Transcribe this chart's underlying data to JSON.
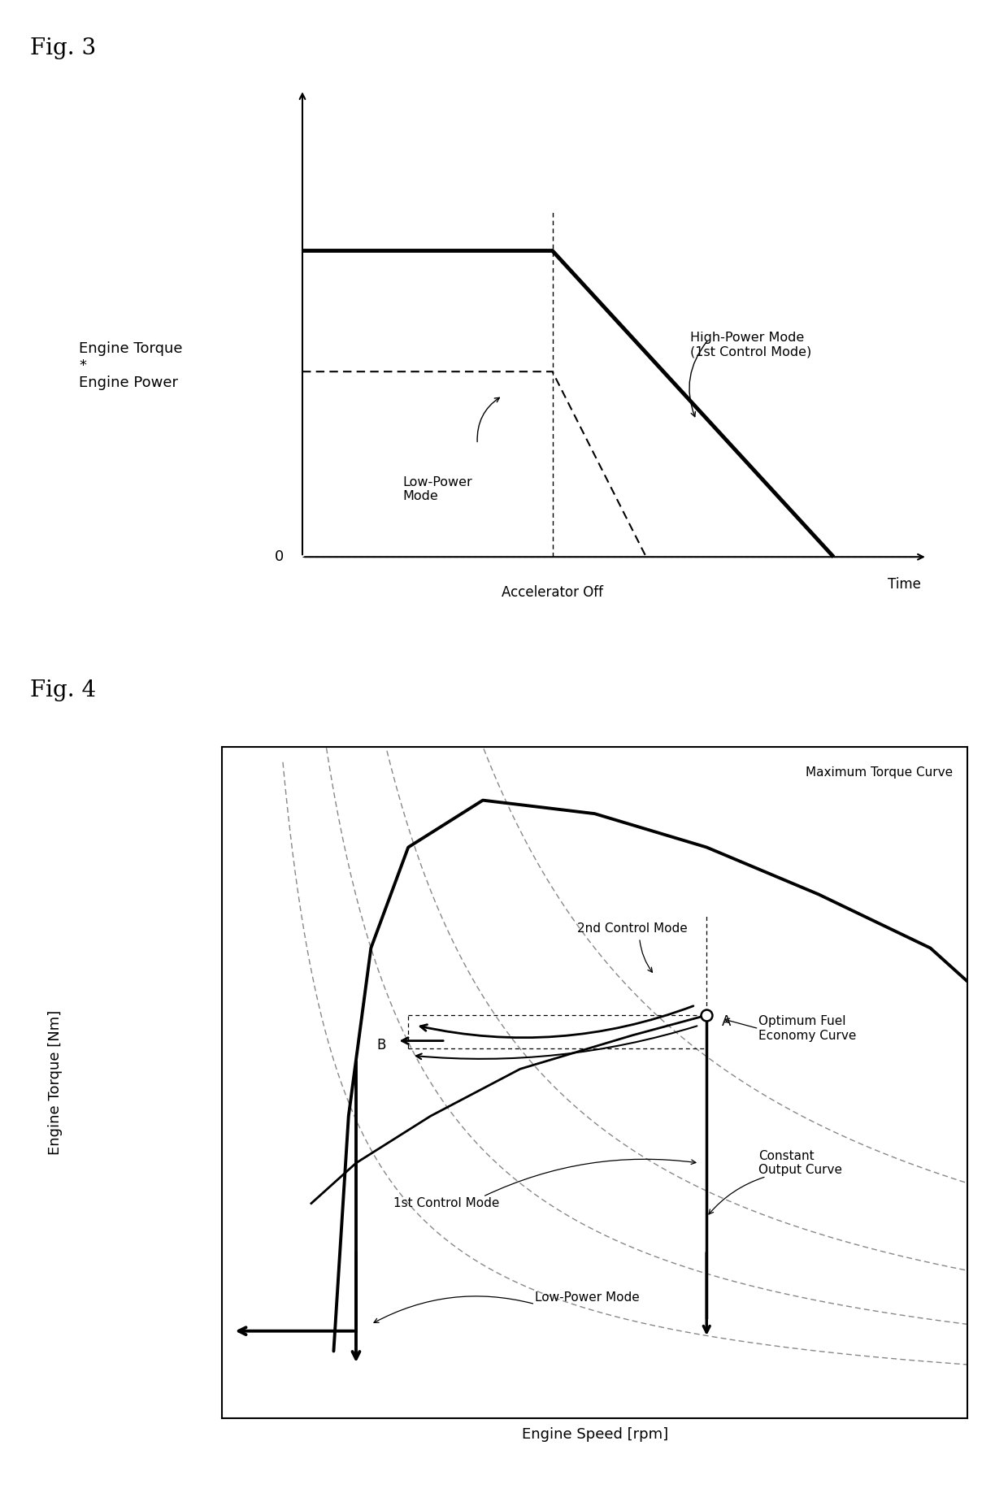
{
  "fig3_title": "Fig. 3",
  "fig4_title": "Fig. 4",
  "fig3_ylabel": "Engine Torque\n*\nEngine Power",
  "fig3_xlabel_accel": "Accelerator Off",
  "fig3_xlabel_time": "Time",
  "fig3_zero_label": "0",
  "fig3_high_power_label": "High-Power Mode\n(1st Control Mode)",
  "fig3_low_power_label": "Low-Power\nMode",
  "fig4_ylabel": "Engine Torque [Nm]",
  "fig4_xlabel": "Engine Speed [rpm]",
  "fig4_max_torque_label": "Maximum Torque Curve",
  "fig4_2nd_mode_label": "2nd Control Mode",
  "fig4_opt_fuel_label": "Optimum Fuel\nEconomy Curve",
  "fig4_const_output_label": "Constant\nOutput Curve",
  "fig4_1st_mode_label": "1st Control Mode",
  "fig4_low_power_label": "Low-Power Mode",
  "fig4_point_A": "A",
  "fig4_point_B": "B",
  "bg_color": "#ffffff"
}
